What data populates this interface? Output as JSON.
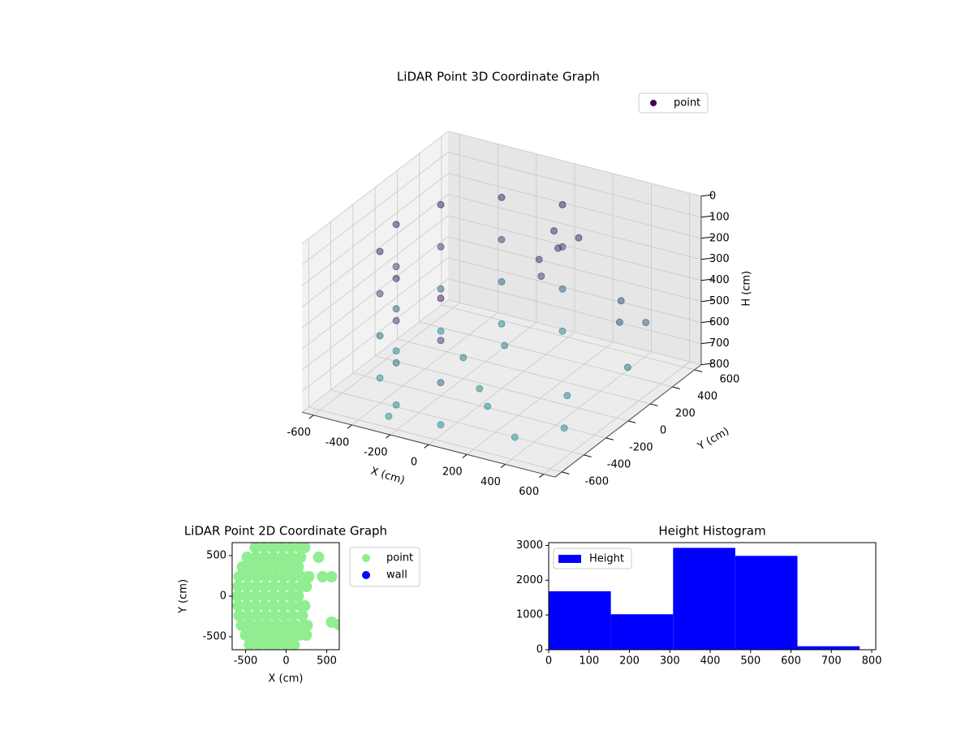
{
  "chart_data": [
    {
      "type": "scatter3d",
      "title": "LiDAR Point 3D Coordinate Graph",
      "xlabel": "X (cm)",
      "ylabel": "Y (cm)",
      "zlabel": "H (cm)",
      "xlim": [
        -660,
        660
      ],
      "ylim": [
        -660,
        660
      ],
      "zlim": [
        800,
        0
      ],
      "xticks": [
        -600,
        -400,
        -200,
        0,
        200,
        400,
        600
      ],
      "yticks": [
        -600,
        -400,
        -200,
        0,
        200,
        400,
        600
      ],
      "zticks": [
        0,
        100,
        200,
        300,
        400,
        500,
        600,
        700,
        800
      ],
      "grid": true,
      "legend": "upper right",
      "series": [
        {
          "name": "point",
          "color_range": [
            "#440154",
            "#21918c"
          ],
          "x": [
            0,
            -275,
            -476,
            -550,
            -476,
            -275,
            0,
            0,
            -275,
            -476,
            -550,
            -476,
            -275,
            0,
            0,
            -275,
            -476,
            -550,
            -476,
            -275,
            0,
            0,
            -275,
            -476,
            -550,
            -476,
            -275,
            0,
            -200,
            0,
            100,
            -100,
            100,
            150,
            80,
            200,
            120,
            450,
            500,
            550,
            600,
            400,
            300,
            -300,
            500
          ],
          "y": [
            550,
            476,
            275,
            0,
            -275,
            -476,
            -550,
            550,
            476,
            275,
            0,
            -275,
            -476,
            -550,
            550,
            476,
            275,
            0,
            -275,
            -476,
            -550,
            550,
            476,
            275,
            0,
            -275,
            -476,
            -550,
            0,
            -200,
            -300,
            200,
            300,
            250,
            200,
            350,
            150,
            300,
            200,
            350,
            100,
            -100,
            -400,
            -500,
            -300
          ],
          "z": [
            150,
            150,
            150,
            150,
            150,
            150,
            150,
            350,
            350,
            350,
            350,
            350,
            350,
            350,
            550,
            550,
            550,
            550,
            550,
            550,
            550,
            750,
            750,
            750,
            750,
            750,
            750,
            750,
            700,
            720,
            740,
            700,
            150,
            200,
            250,
            180,
            300,
            400,
            450,
            500,
            600,
            700,
            800,
            800,
            750
          ]
        }
      ]
    },
    {
      "type": "scatter",
      "title": "LiDAR Point 2D Coordinate Graph",
      "xlabel": "X (cm)",
      "ylabel": "Y (cm)",
      "xlim": [
        -665,
        655
      ],
      "ylim": [
        -660,
        660
      ],
      "xticks": [
        -500,
        0,
        500
      ],
      "yticks": [
        -500,
        0,
        500
      ],
      "legend": "outside right",
      "series": [
        {
          "name": "point",
          "color": "#90ee90",
          "x": [
            -380,
            -270,
            -160,
            -50,
            60,
            170,
            230,
            -480,
            -370,
            -260,
            -150,
            -40,
            70,
            180,
            400,
            -540,
            -430,
            -320,
            -210,
            -100,
            10,
            120,
            150,
            -580,
            -470,
            -360,
            -250,
            -140,
            -30,
            80,
            190,
            280,
            450,
            560,
            -590,
            -480,
            -370,
            -260,
            -150,
            -40,
            70,
            180,
            250,
            -600,
            -490,
            -380,
            -270,
            -160,
            -50,
            60,
            150,
            -590,
            -480,
            -370,
            -260,
            -150,
            -40,
            70,
            180,
            230,
            -580,
            -470,
            -360,
            -250,
            -140,
            -30,
            80,
            200,
            -550,
            -440,
            -330,
            -220,
            -110,
            0,
            110,
            220,
            260,
            560,
            650,
            -500,
            -390,
            -280,
            -170,
            -60,
            50,
            160,
            250,
            -450,
            -340,
            -230,
            -120,
            -10,
            100
          ],
          "y": [
            600,
            600,
            600,
            600,
            600,
            600,
            600,
            480,
            480,
            480,
            480,
            480,
            480,
            480,
            480,
            360,
            360,
            360,
            360,
            360,
            360,
            360,
            360,
            240,
            240,
            240,
            240,
            240,
            240,
            240,
            240,
            240,
            240,
            240,
            120,
            120,
            120,
            120,
            120,
            120,
            120,
            120,
            120,
            0,
            0,
            0,
            0,
            0,
            0,
            0,
            0,
            -120,
            -120,
            -120,
            -120,
            -120,
            -120,
            -120,
            -120,
            -120,
            -240,
            -240,
            -240,
            -240,
            -240,
            -240,
            -240,
            -240,
            -360,
            -360,
            -360,
            -360,
            -360,
            -360,
            -360,
            -360,
            -360,
            -320,
            -350,
            -480,
            -480,
            -480,
            -480,
            -480,
            -480,
            -480,
            -480,
            -600,
            -600,
            -600,
            -600,
            -600,
            -600
          ]
        },
        {
          "name": "wall",
          "color": "#0000ff",
          "x": [],
          "y": []
        }
      ]
    },
    {
      "type": "histogram",
      "title": "Height Histogram",
      "label": "Height",
      "color": "#0000ff",
      "legend": "upper left",
      "bins": [
        0,
        154,
        308,
        462,
        616,
        770
      ],
      "values": [
        1680,
        1020,
        2930,
        2700,
        100
      ],
      "xlim": [
        0,
        810
      ],
      "ylim": [
        0,
        3080
      ],
      "xticks": [
        0,
        100,
        200,
        300,
        400,
        500,
        600,
        700,
        800
      ],
      "yticks": [
        0,
        1000,
        2000,
        3000
      ]
    }
  ]
}
